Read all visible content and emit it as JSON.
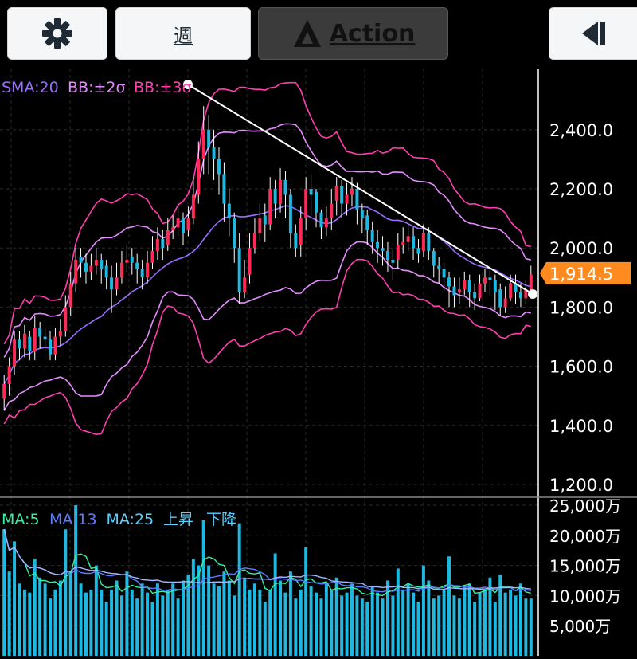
{
  "toolbar": {
    "settings_icon": "gear-icon",
    "period_label": "週",
    "action_label": "Action",
    "panel_icon": "collapse-panel-icon"
  },
  "price_legend": [
    {
      "label": "SMA:20",
      "color": "#9b6cff"
    },
    {
      "label": "BB:±2σ",
      "color": "#e58cff"
    },
    {
      "label": "BB:±3σ",
      "color": "#ff3fb0"
    }
  ],
  "volume_legend": [
    {
      "label": "MA:5",
      "color": "#35f0a0"
    },
    {
      "label": "MA:13",
      "color": "#5b7cff"
    },
    {
      "label": "MA:25",
      "color": "#5ad0ff"
    },
    {
      "label": "上昇",
      "color": "#5ad0ff"
    },
    {
      "label": "下降",
      "color": "#5ad0ff"
    }
  ],
  "colors": {
    "up": "#ff2a55",
    "down": "#1fb8e0",
    "sma": "#9b6cff",
    "bb2": "#e58cff",
    "bb3": "#ff3fb0",
    "trendline": "#ffffff",
    "current_price_tag": "#ff8a1f",
    "volume_bar": "#1fb8e0"
  },
  "current_price": {
    "label": "1,914.5",
    "value": 1914.5
  },
  "chart_data": [
    {
      "type": "line",
      "description_type": "candlestick",
      "ylim": [
        1200,
        2600
      ],
      "yticks": [
        {
          "value": 2400,
          "label": "2,400.0"
        },
        {
          "value": 2200,
          "label": "2,200.0"
        },
        {
          "value": 2000,
          "label": "2,000.0"
        },
        {
          "value": 1800,
          "label": "1,800.0"
        },
        {
          "value": 1600,
          "label": "1,600.0"
        },
        {
          "value": 1400,
          "label": "1,400.0"
        },
        {
          "value": 1200,
          "label": "1,200.0"
        }
      ],
      "close": [
        1540,
        1600,
        1690,
        1660,
        1710,
        1650,
        1730,
        1700,
        1690,
        1640,
        1700,
        1720,
        1800,
        1880,
        1960,
        1950,
        1920,
        1940,
        1960,
        1930,
        1900,
        1860,
        1900,
        1950,
        1960,
        1950,
        1930,
        1900,
        1950,
        1990,
        2030,
        2000,
        2060,
        2070,
        2100,
        2050,
        2100,
        2180,
        2300,
        2400,
        2340,
        2300,
        2250,
        2150,
        2100,
        2000,
        1850,
        1900,
        2000,
        2050,
        2100,
        2080,
        2200,
        2150,
        2230,
        2180,
        2050,
        2000,
        2100,
        2200,
        2180,
        2120,
        2070,
        2100,
        2150,
        2210,
        2150,
        2180,
        2200,
        2130,
        2100,
        2060,
        2020,
        2000,
        1990,
        1960,
        1950,
        2010,
        2020,
        2040,
        2000,
        1980,
        2050,
        1990,
        1940,
        1930,
        1900,
        1870,
        1840,
        1860,
        1890,
        1850,
        1830,
        1880,
        1900,
        1890,
        1850,
        1800,
        1830,
        1880,
        1850,
        1830,
        1860,
        1910
      ],
      "open": [
        1490,
        1540,
        1600,
        1690,
        1660,
        1700,
        1650,
        1730,
        1700,
        1690,
        1640,
        1700,
        1720,
        1800,
        1880,
        1970,
        1950,
        1920,
        1940,
        1960,
        1940,
        1900,
        1860,
        1900,
        1950,
        1970,
        1950,
        1930,
        1900,
        1950,
        1990,
        2030,
        2010,
        2060,
        2070,
        2100,
        2060,
        2100,
        2180,
        2300,
        2400,
        2340,
        2300,
        2250,
        2150,
        2100,
        2000,
        1850,
        1910,
        2000,
        2050,
        2110,
        2080,
        2200,
        2150,
        2230,
        2180,
        2050,
        2010,
        2100,
        2200,
        2190,
        2120,
        2070,
        2100,
        2160,
        2210,
        2150,
        2180,
        2200,
        2130,
        2110,
        2060,
        2020,
        2000,
        1990,
        1960,
        1960,
        2010,
        2020,
        2040,
        2000,
        1990,
        2050,
        1990,
        1940,
        1930,
        1900,
        1870,
        1850,
        1860,
        1890,
        1850,
        1830,
        1880,
        1900,
        1890,
        1860,
        1800,
        1830,
        1880,
        1850,
        1830,
        1860
      ],
      "high": [
        1570,
        1630,
        1720,
        1720,
        1740,
        1720,
        1770,
        1750,
        1730,
        1720,
        1730,
        1760,
        1840,
        1920,
        2000,
        2000,
        1980,
        1980,
        2000,
        1980,
        1960,
        1940,
        1950,
        1990,
        2010,
        2000,
        1980,
        1960,
        1990,
        2040,
        2070,
        2060,
        2100,
        2110,
        2150,
        2120,
        2140,
        2240,
        2360,
        2480,
        2450,
        2400,
        2340,
        2290,
        2200,
        2120,
        2050,
        1960,
        2050,
        2100,
        2150,
        2150,
        2240,
        2230,
        2270,
        2260,
        2200,
        2080,
        2140,
        2240,
        2250,
        2200,
        2130,
        2140,
        2200,
        2240,
        2230,
        2220,
        2240,
        2220,
        2150,
        2130,
        2090,
        2060,
        2040,
        2020,
        2000,
        2050,
        2070,
        2080,
        2070,
        2030,
        2080,
        2070,
        2000,
        1970,
        1950,
        1920,
        1900,
        1900,
        1920,
        1910,
        1880,
        1910,
        1930,
        1930,
        1910,
        1880,
        1870,
        1910,
        1910,
        1880,
        1890,
        1940
      ],
      "low": [
        1450,
        1500,
        1570,
        1620,
        1630,
        1620,
        1620,
        1660,
        1650,
        1620,
        1620,
        1670,
        1700,
        1770,
        1850,
        1900,
        1880,
        1890,
        1910,
        1880,
        1860,
        1780,
        1840,
        1880,
        1920,
        1910,
        1880,
        1860,
        1880,
        1930,
        1960,
        1960,
        1990,
        2030,
        2040,
        2010,
        2040,
        2080,
        2150,
        2250,
        2250,
        2230,
        2180,
        2090,
        2040,
        1950,
        1810,
        1830,
        1880,
        1980,
        2020,
        2020,
        2060,
        2100,
        2120,
        2100,
        2000,
        1970,
        1970,
        2060,
        2110,
        2070,
        2030,
        2040,
        2060,
        2110,
        2100,
        2110,
        2140,
        2080,
        2050,
        2010,
        1980,
        1950,
        1940,
        1920,
        1890,
        1930,
        1980,
        1990,
        1960,
        1950,
        1970,
        1960,
        1900,
        1880,
        1850,
        1800,
        1800,
        1810,
        1840,
        1800,
        1790,
        1820,
        1850,
        1840,
        1790,
        1770,
        1780,
        1820,
        1810,
        1800,
        1810,
        1840
      ]
    },
    {
      "type": "bar",
      "ylim": [
        0,
        25000
      ],
      "yticks": [
        {
          "value": 25000,
          "label": "25,000万"
        },
        {
          "value": 20000,
          "label": "20,000万"
        },
        {
          "value": 15000,
          "label": "15,000万"
        },
        {
          "value": 10000,
          "label": "10,000万"
        },
        {
          "value": 5000,
          "label": "5,000万"
        }
      ],
      "values": [
        21000,
        14000,
        19000,
        12000,
        11000,
        10500,
        16000,
        13000,
        12000,
        9500,
        11000,
        12500,
        21000,
        14000,
        25000,
        12000,
        10500,
        11000,
        15000,
        11000,
        9000,
        11000,
        12500,
        10000,
        14000,
        11000,
        9500,
        12000,
        10500,
        9000,
        12000,
        10000,
        11000,
        12000,
        9500,
        12500,
        13500,
        16000,
        15000,
        22500,
        15000,
        12000,
        11500,
        14000,
        12500,
        10000,
        22000,
        13000,
        11000,
        12000,
        11000,
        9000,
        11000,
        17000,
        12500,
        10500,
        14000,
        9500,
        11000,
        18000,
        11500,
        10500,
        9500,
        12000,
        11000,
        13000,
        10000,
        10500,
        12000,
        10000,
        9500,
        9000,
        11500,
        10500,
        9500,
        12500,
        10000,
        14500,
        11000,
        12000,
        10500,
        9000,
        15000,
        12500,
        9500,
        10000,
        11000,
        16500,
        10000,
        9500,
        11500,
        12000,
        9000,
        10500,
        11000,
        13000,
        9000,
        13500,
        10500,
        11000,
        10000,
        12000,
        9500,
        9500
      ]
    }
  ]
}
